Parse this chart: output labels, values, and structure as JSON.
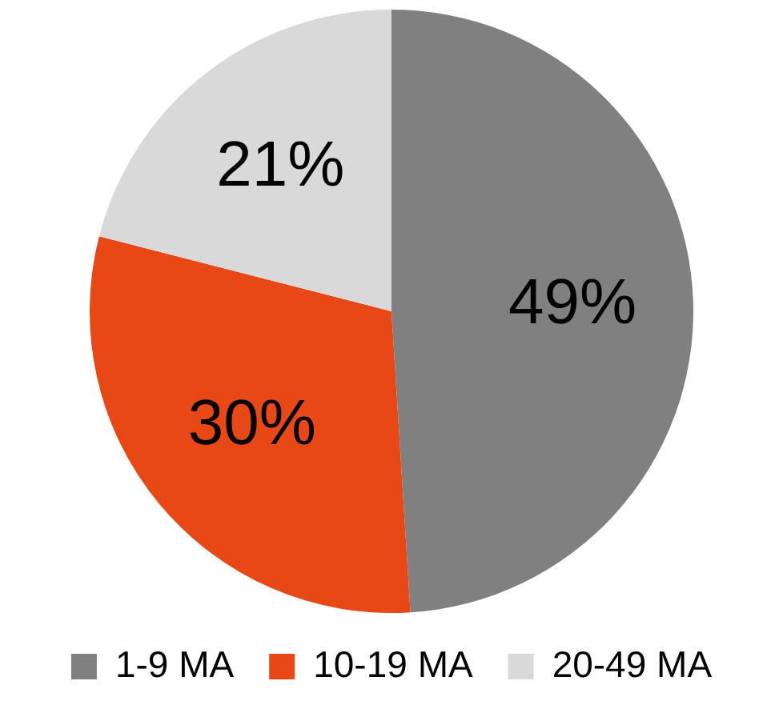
{
  "chart_data": {
    "type": "pie",
    "categories": [
      "1-9 MA",
      "10-19 MA",
      "20-49 MA"
    ],
    "values": [
      49,
      30,
      21
    ],
    "colors": [
      "#808080",
      "#e84815",
      "#d9d9d9"
    ],
    "value_labels": [
      "49%",
      "30%",
      "21%"
    ],
    "legend": "bottom"
  }
}
